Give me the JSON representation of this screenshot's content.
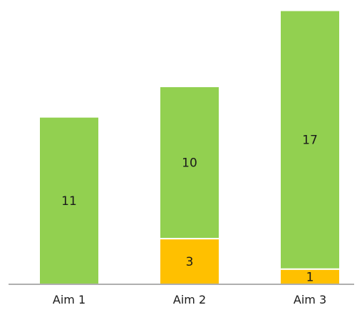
{
  "chart_data": {
    "type": "bar",
    "stacked": true,
    "categories": [
      "Aim 1",
      "Aim 2",
      "Aim 3"
    ],
    "series": [
      {
        "values": [
          0,
          3,
          1
        ],
        "color": "#FFC000"
      },
      {
        "values": [
          11,
          10,
          17
        ],
        "color": "#92D050"
      }
    ],
    "ylim": [
      0,
      18.4
    ],
    "grid": false,
    "legend": "none"
  }
}
